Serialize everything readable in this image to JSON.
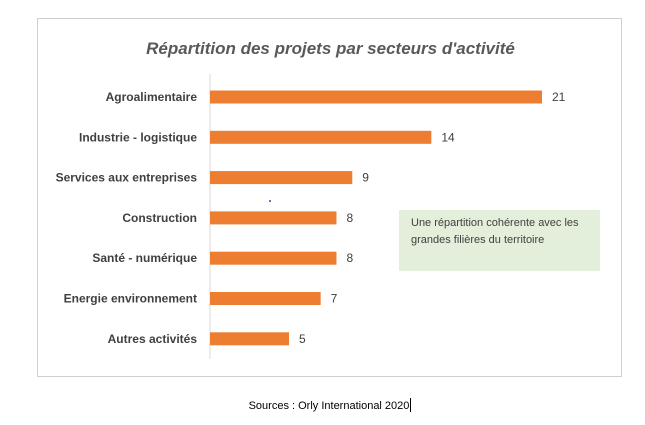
{
  "chart_data": {
    "type": "bar",
    "orientation": "horizontal",
    "title": "Répartition des projets par secteurs d'activité",
    "xlabel": "",
    "ylabel": "",
    "categories": [
      "Agroalimentaire",
      "Industrie - logistique",
      "Services aux entreprises",
      "Construction",
      "Santé - numérique",
      "Energie environnement",
      "Autres activités"
    ],
    "values": [
      21,
      14,
      9,
      8,
      8,
      7,
      5
    ],
    "data_labels": [
      "21",
      "14",
      "9",
      "8",
      "8",
      "7",
      "5"
    ],
    "xlim": [
      0,
      24
    ],
    "grid": false,
    "legend": "none",
    "bar_color": "#ed7d31",
    "annotation": "Une répartition cohérente avec les grandes filières du territoire"
  },
  "source_text": "Sources : Orly International 2020"
}
